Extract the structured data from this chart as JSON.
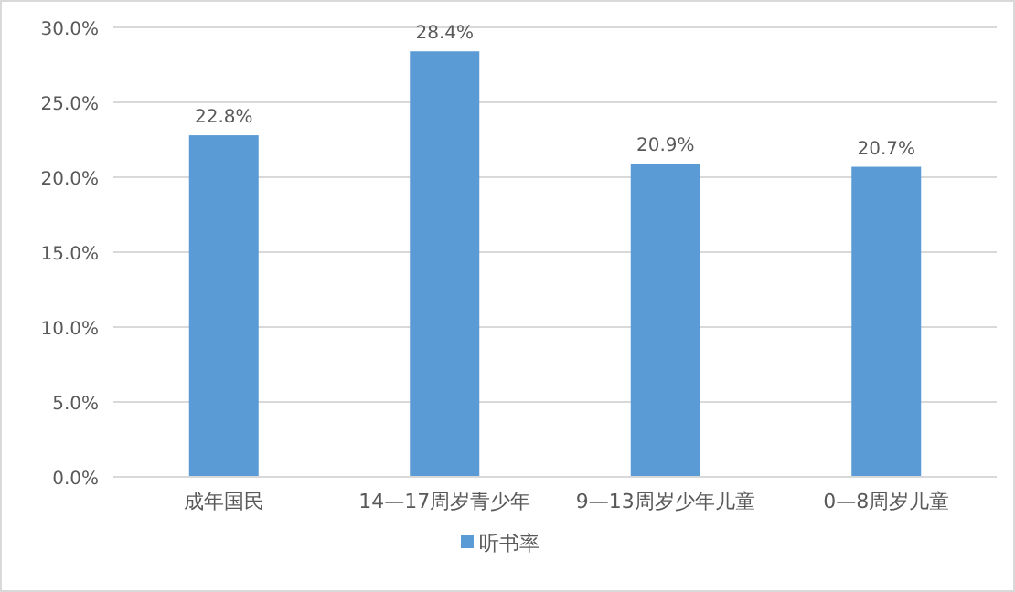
{
  "chart_data": {
    "type": "bar",
    "categories": [
      "成年国民",
      "14—17周岁青少年",
      "9—13周岁少年儿童",
      "0—8周岁儿童"
    ],
    "series": [
      {
        "name": "听书率",
        "color": "#5b9bd5",
        "values": [
          22.8,
          28.4,
          20.9,
          20.7
        ],
        "value_labels": [
          "22.8%",
          "28.4%",
          "20.9%",
          "20.7%"
        ]
      }
    ],
    "ylim": [
      0,
      30
    ],
    "yticks": [
      {
        "value": 0,
        "label": "0.0%"
      },
      {
        "value": 5,
        "label": "5.0%"
      },
      {
        "value": 10,
        "label": "10.0%"
      },
      {
        "value": 15,
        "label": "15.0%"
      },
      {
        "value": 20,
        "label": "20.0%"
      },
      {
        "value": 25,
        "label": "25.0%"
      },
      {
        "value": 30,
        "label": "30.0%"
      }
    ],
    "grid": "y",
    "legend": "bottom"
  }
}
